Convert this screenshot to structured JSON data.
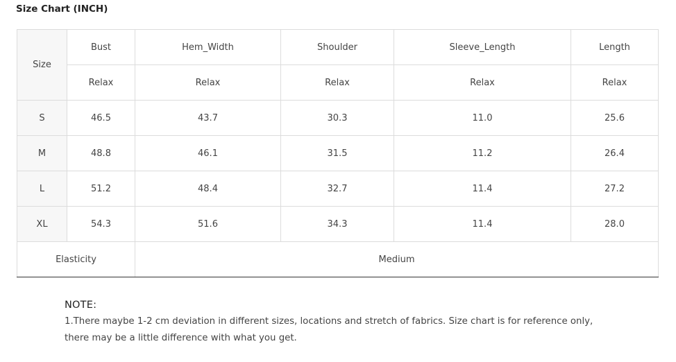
{
  "title": "Size Chart (INCH)",
  "table": {
    "size_header": "Size",
    "columns": [
      "Bust",
      "Hem_Width",
      "Shoulder",
      "Sleeve_Length",
      "Length"
    ],
    "subheaders": [
      "Relax",
      "Relax",
      "Relax",
      "Relax",
      "Relax"
    ],
    "rows": [
      {
        "size": "S",
        "values": [
          "46.5",
          "43.7",
          "30.3",
          "11.0",
          "25.6"
        ]
      },
      {
        "size": "M",
        "values": [
          "48.8",
          "46.1",
          "31.5",
          "11.2",
          "26.4"
        ]
      },
      {
        "size": "L",
        "values": [
          "51.2",
          "48.4",
          "32.7",
          "11.4",
          "27.2"
        ]
      },
      {
        "size": "XL",
        "values": [
          "54.3",
          "51.6",
          "34.3",
          "11.4",
          "28.0"
        ]
      }
    ],
    "elasticity_label": "Elasticity",
    "elasticity_value": "Medium"
  },
  "note": {
    "title": "NOTE:",
    "text": "1.There maybe 1-2 cm deviation in different sizes, locations and stretch of fabrics. Size chart is for reference only, there may be a little difference with what you get."
  }
}
